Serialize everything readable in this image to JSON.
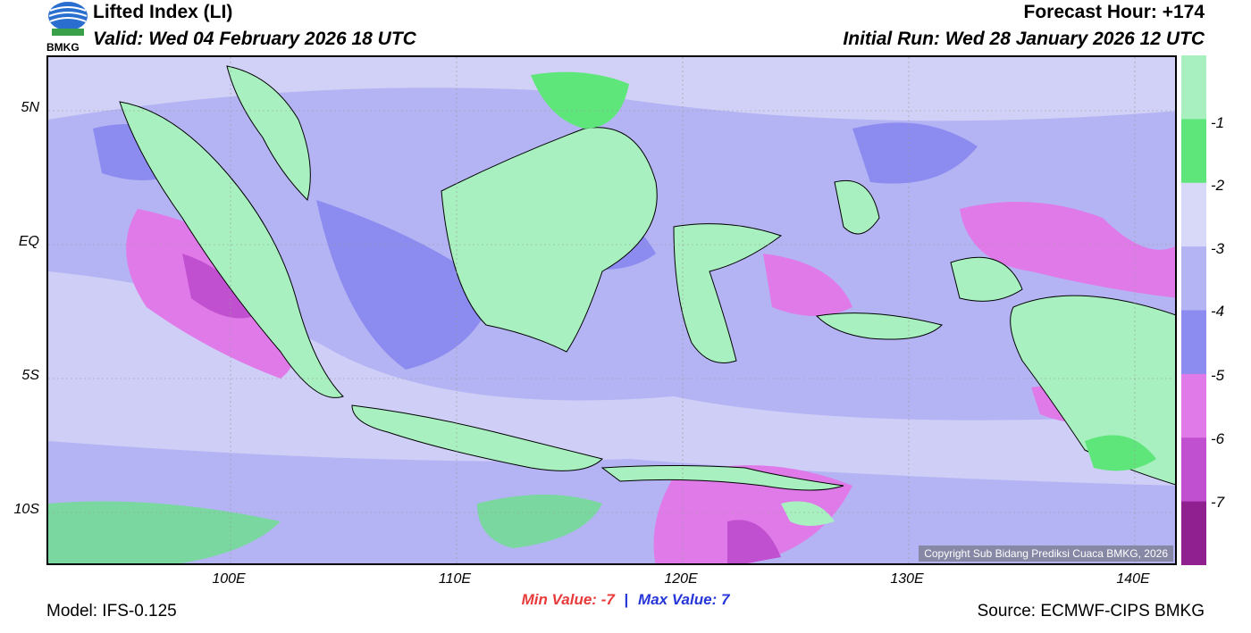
{
  "header": {
    "title": "Lifted Index (LI)",
    "valid": "Valid: Wed 04 February 2026 18 UTC",
    "forecast_hour": "Forecast Hour: +174",
    "initial_run": "Initial Run: Wed 28 January 2026 12 UTC",
    "logo_text": "BMKG"
  },
  "axes": {
    "y_ticks": [
      "5N",
      "EQ",
      "5S",
      "10S"
    ],
    "x_ticks": [
      "100E",
      "110E",
      "120E",
      "130E",
      "140E"
    ]
  },
  "colorbar": {
    "labels": [
      "-1",
      "-2",
      "-3",
      "-4",
      "-5",
      "-6",
      "-7"
    ],
    "colors": [
      "#a8f0c0",
      "#5fe67a",
      "#d8d8f8",
      "#b4b4f4",
      "#8c8cf0",
      "#e07ae8",
      "#c050d0",
      "#902090"
    ]
  },
  "stats": {
    "min_label": "Min Value:",
    "min_value": "-7",
    "separator": "|",
    "max_label": "Max Value:",
    "max_value": "7"
  },
  "footer": {
    "model": "Model: IFS-0.125",
    "source": "Source: ECMWF-CIPS BMKG",
    "copyright": "Copyright Sub Bidang Prediksi Cuaca BMKG, 2026"
  }
}
